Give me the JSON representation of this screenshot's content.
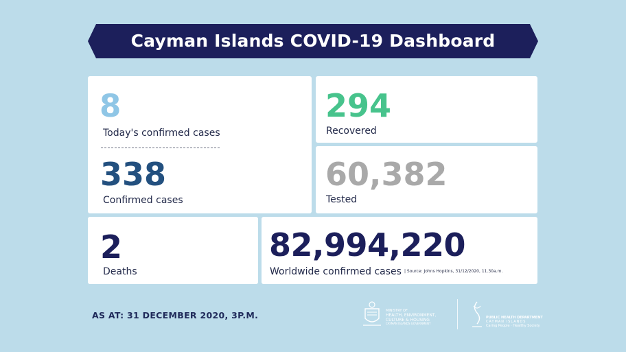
{
  "title": "Cayman Islands COVID-19 Dashboard",
  "stats": {
    "today_confirmed": {
      "value": "8",
      "label": "Today's confirmed cases"
    },
    "confirmed": {
      "value": "338",
      "label": "Confirmed cases"
    },
    "recovered": {
      "value": "294",
      "label": "Recovered"
    },
    "tested": {
      "value": "60,382",
      "label": "Tested"
    },
    "deaths": {
      "value": "2",
      "label": "Deaths"
    },
    "worldwide": {
      "value": "82,994,220",
      "label": "Worldwide confirmed cases",
      "source": "| Source: Johns Hopkins, 31/12/2020, 11.30a.m."
    }
  },
  "footer": {
    "as_at": "AS AT:  31 DECEMBER 2020, 3P.M.",
    "ministry_logo_lines": [
      "MINISTRY OF",
      "HEALTH, ENVIRONMENT,",
      "CULTURE & HOUSING",
      "CAYMAN ISLANDS GOVERNMENT"
    ],
    "phd_logo_lines": [
      "PUBLIC HEALTH DEPARTMENT",
      "CAYMAN ISLANDS",
      "Caring People · Healthy Society"
    ]
  },
  "colors": {
    "background": "#bcdcea",
    "banner": "#1c1f5b",
    "today_value": "#8fc6e6",
    "confirmed_value": "#23507f",
    "recovered_value": "#47c38c",
    "tested_value": "#a9a9a9",
    "deaths_value": "#1c1f5b",
    "worldwide_value": "#1c1f5b"
  }
}
